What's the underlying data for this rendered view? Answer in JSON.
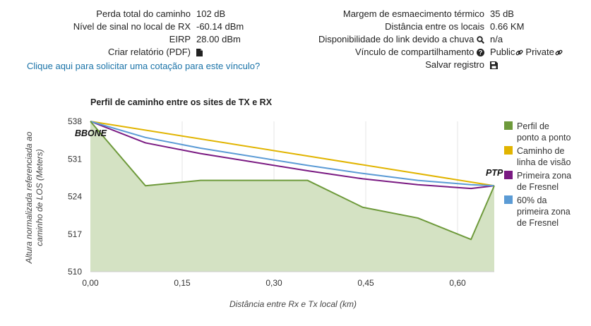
{
  "link_info": {
    "left": [
      {
        "label": "Perda total do caminho",
        "value": "102 dB"
      },
      {
        "label": "Nível de sinal no local de RX",
        "value": "-60.14 dBm"
      },
      {
        "label": "EIRP",
        "value": "28.00 dBm"
      },
      {
        "label": "Criar relatório (PDF)",
        "value": "",
        "icon": "file-icon"
      }
    ],
    "right": [
      {
        "label": "Margem de esmaecimento térmico",
        "value": "35 dB"
      },
      {
        "label": "Distância entre os locais",
        "value": "0.66 KM"
      },
      {
        "label": "Disponibilidade do link devido a chuva",
        "value": "n/a",
        "icon": "search-icon"
      },
      {
        "label": "Vínculo de compartilhamento",
        "value": "",
        "icon": "question-circle-icon",
        "links": [
          "Public",
          "Private"
        ]
      },
      {
        "label": "Salvar registro",
        "value": "",
        "icon": "save-icon"
      }
    ],
    "quote_link": "Clique aqui para solicitar uma cotação para este vínculo?"
  },
  "chart_data": {
    "type": "line",
    "title": "Perfil de caminho entre os sites de TX e RX",
    "xlabel": "Distância entre Rx e Tx local (km)",
    "ylabel_lines": [
      "Altura normalizada referenciada ao",
      "caminho de LOS (Meters)"
    ],
    "xlim": [
      0,
      0.66
    ],
    "ylim": [
      510,
      538
    ],
    "x_ticks": [
      0,
      0.15,
      0.3,
      0.45,
      0.6
    ],
    "x_tick_labels": [
      "0,00",
      "0,15",
      "0,30",
      "0,45",
      "0,60"
    ],
    "y_ticks": [
      510,
      517,
      524,
      531,
      538
    ],
    "y_tick_labels": [
      "510",
      "517",
      "524",
      "531",
      "538"
    ],
    "grid": "vertical",
    "site_labels": {
      "tx": "BBONE",
      "rx": "PTP"
    },
    "legend_position": "right",
    "series": [
      {
        "name": "Perfil de ponto a ponto",
        "color": "#6e9a3b",
        "fill": "#d4e2c3",
        "x": [
          0,
          0.09,
          0.18,
          0.355,
          0.445,
          0.535,
          0.622,
          0.66
        ],
        "y": [
          538,
          526,
          527,
          527,
          522,
          520,
          516,
          526
        ]
      },
      {
        "name": "Caminho de linha de visão",
        "color": "#e1b400",
        "x": [
          0,
          0.66
        ],
        "y": [
          538,
          526
        ]
      },
      {
        "name": "Primeira zona de Fresnel",
        "color": "#7a1a82",
        "x": [
          0,
          0.09,
          0.18,
          0.355,
          0.445,
          0.535,
          0.622,
          0.66
        ],
        "y": [
          538,
          534,
          532,
          528.8,
          527.3,
          526.2,
          525.5,
          526
        ]
      },
      {
        "name": "60% da primeira zona de Fresnel",
        "color": "#5b9bd5",
        "x": [
          0,
          0.09,
          0.18,
          0.355,
          0.445,
          0.535,
          0.622,
          0.66
        ],
        "y": [
          538,
          535,
          533,
          529.8,
          528.3,
          527,
          526.2,
          526
        ]
      }
    ]
  }
}
